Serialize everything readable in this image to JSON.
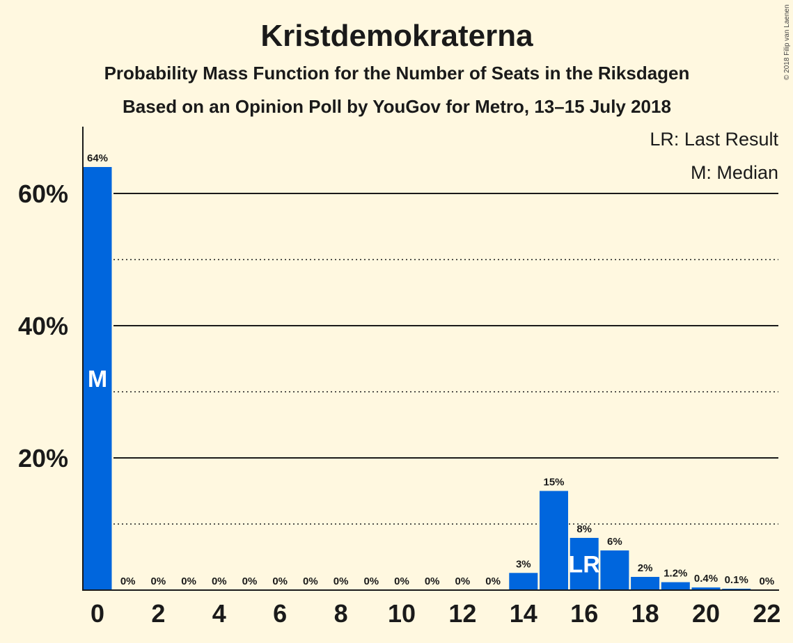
{
  "chart_data": {
    "type": "bar",
    "title": "Kristdemokraterna",
    "subtitle_1": "Probability Mass Function for the Number of Seats in the Riksdagen",
    "subtitle_2": "Based on an Opinion Poll by YouGov for Metro, 13–15 July 2018",
    "legend_lr": "LR: Last Result",
    "legend_m": "M: Median",
    "copyright": "© 2018 Filip van Laenen",
    "xlabel": "",
    "ylabel": "",
    "ylim": [
      0,
      70
    ],
    "y_ticks": [
      {
        "value": 20,
        "label": "20%"
      },
      {
        "value": 40,
        "label": "40%"
      },
      {
        "value": 60,
        "label": "60%"
      }
    ],
    "y_dotted_gridlines": [
      10,
      30,
      50
    ],
    "x_ticks": [
      0,
      2,
      4,
      6,
      8,
      10,
      12,
      14,
      16,
      18,
      20,
      22
    ],
    "x_tick_labels": [
      "0",
      "2",
      "4",
      "6",
      "8",
      "10",
      "12",
      "14",
      "16",
      "18",
      "20",
      "22"
    ],
    "categories": [
      0,
      1,
      2,
      3,
      4,
      5,
      6,
      7,
      8,
      9,
      10,
      11,
      12,
      13,
      14,
      15,
      16,
      17,
      18,
      19,
      20,
      21,
      22
    ],
    "values": [
      64,
      0,
      0,
      0,
      0,
      0,
      0,
      0,
      0,
      0,
      0,
      0,
      0,
      0,
      2.6,
      15,
      7.9,
      6,
      2,
      1.2,
      0.4,
      0.1,
      0
    ],
    "value_labels": [
      "64%",
      "0%",
      "0%",
      "0%",
      "0%",
      "0%",
      "0%",
      "0%",
      "0%",
      "0%",
      "0%",
      "0%",
      "0%",
      "0%",
      "3%",
      "15%",
      "8%",
      "6%",
      "2%",
      "1.2%",
      "0.4%",
      "0.1%",
      "0%"
    ],
    "median_seat": 0,
    "median_marker": "M",
    "last_result_seat": 16,
    "last_result_marker": "LR",
    "bar_color": "#0066dd",
    "grid": true,
    "legend_position": "top-right"
  }
}
